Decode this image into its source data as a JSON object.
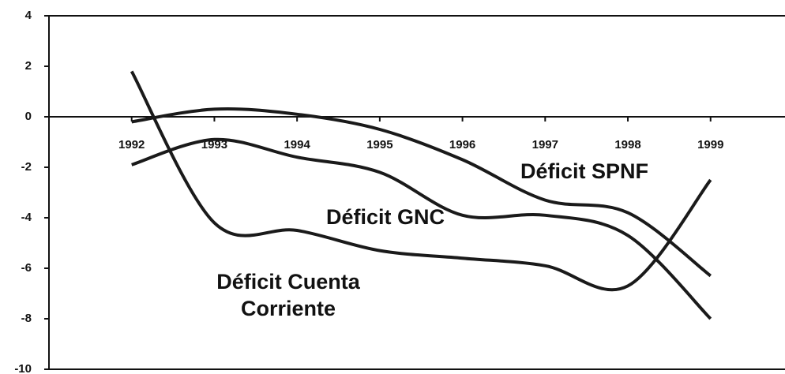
{
  "chart_data": {
    "type": "line",
    "x": [
      1992,
      1993,
      1994,
      1995,
      1996,
      1997,
      1998,
      1999
    ],
    "series": [
      {
        "name": "Déficit SPNF",
        "color": "#1a1a1a",
        "values": [
          -0.2,
          0.3,
          0.1,
          -0.5,
          -1.7,
          -3.3,
          -3.8,
          -6.3
        ]
      },
      {
        "name": "Déficit GNC",
        "color": "#1a1a1a",
        "values": [
          -1.9,
          -0.9,
          -1.6,
          -2.2,
          -3.9,
          -3.9,
          -4.7,
          -8.0
        ]
      },
      {
        "name": "Déficit Cuenta Corriente",
        "color": "#1a1a1a",
        "values": [
          1.8,
          -4.2,
          -4.5,
          -5.3,
          -5.6,
          -5.9,
          -6.7,
          -2.5
        ]
      }
    ],
    "xlim": [
      1991,
      1999.9
    ],
    "ylim": [
      -10,
      4
    ],
    "yticks": [
      -10,
      -8,
      -6,
      -4,
      -2,
      0,
      2,
      4
    ]
  }
}
